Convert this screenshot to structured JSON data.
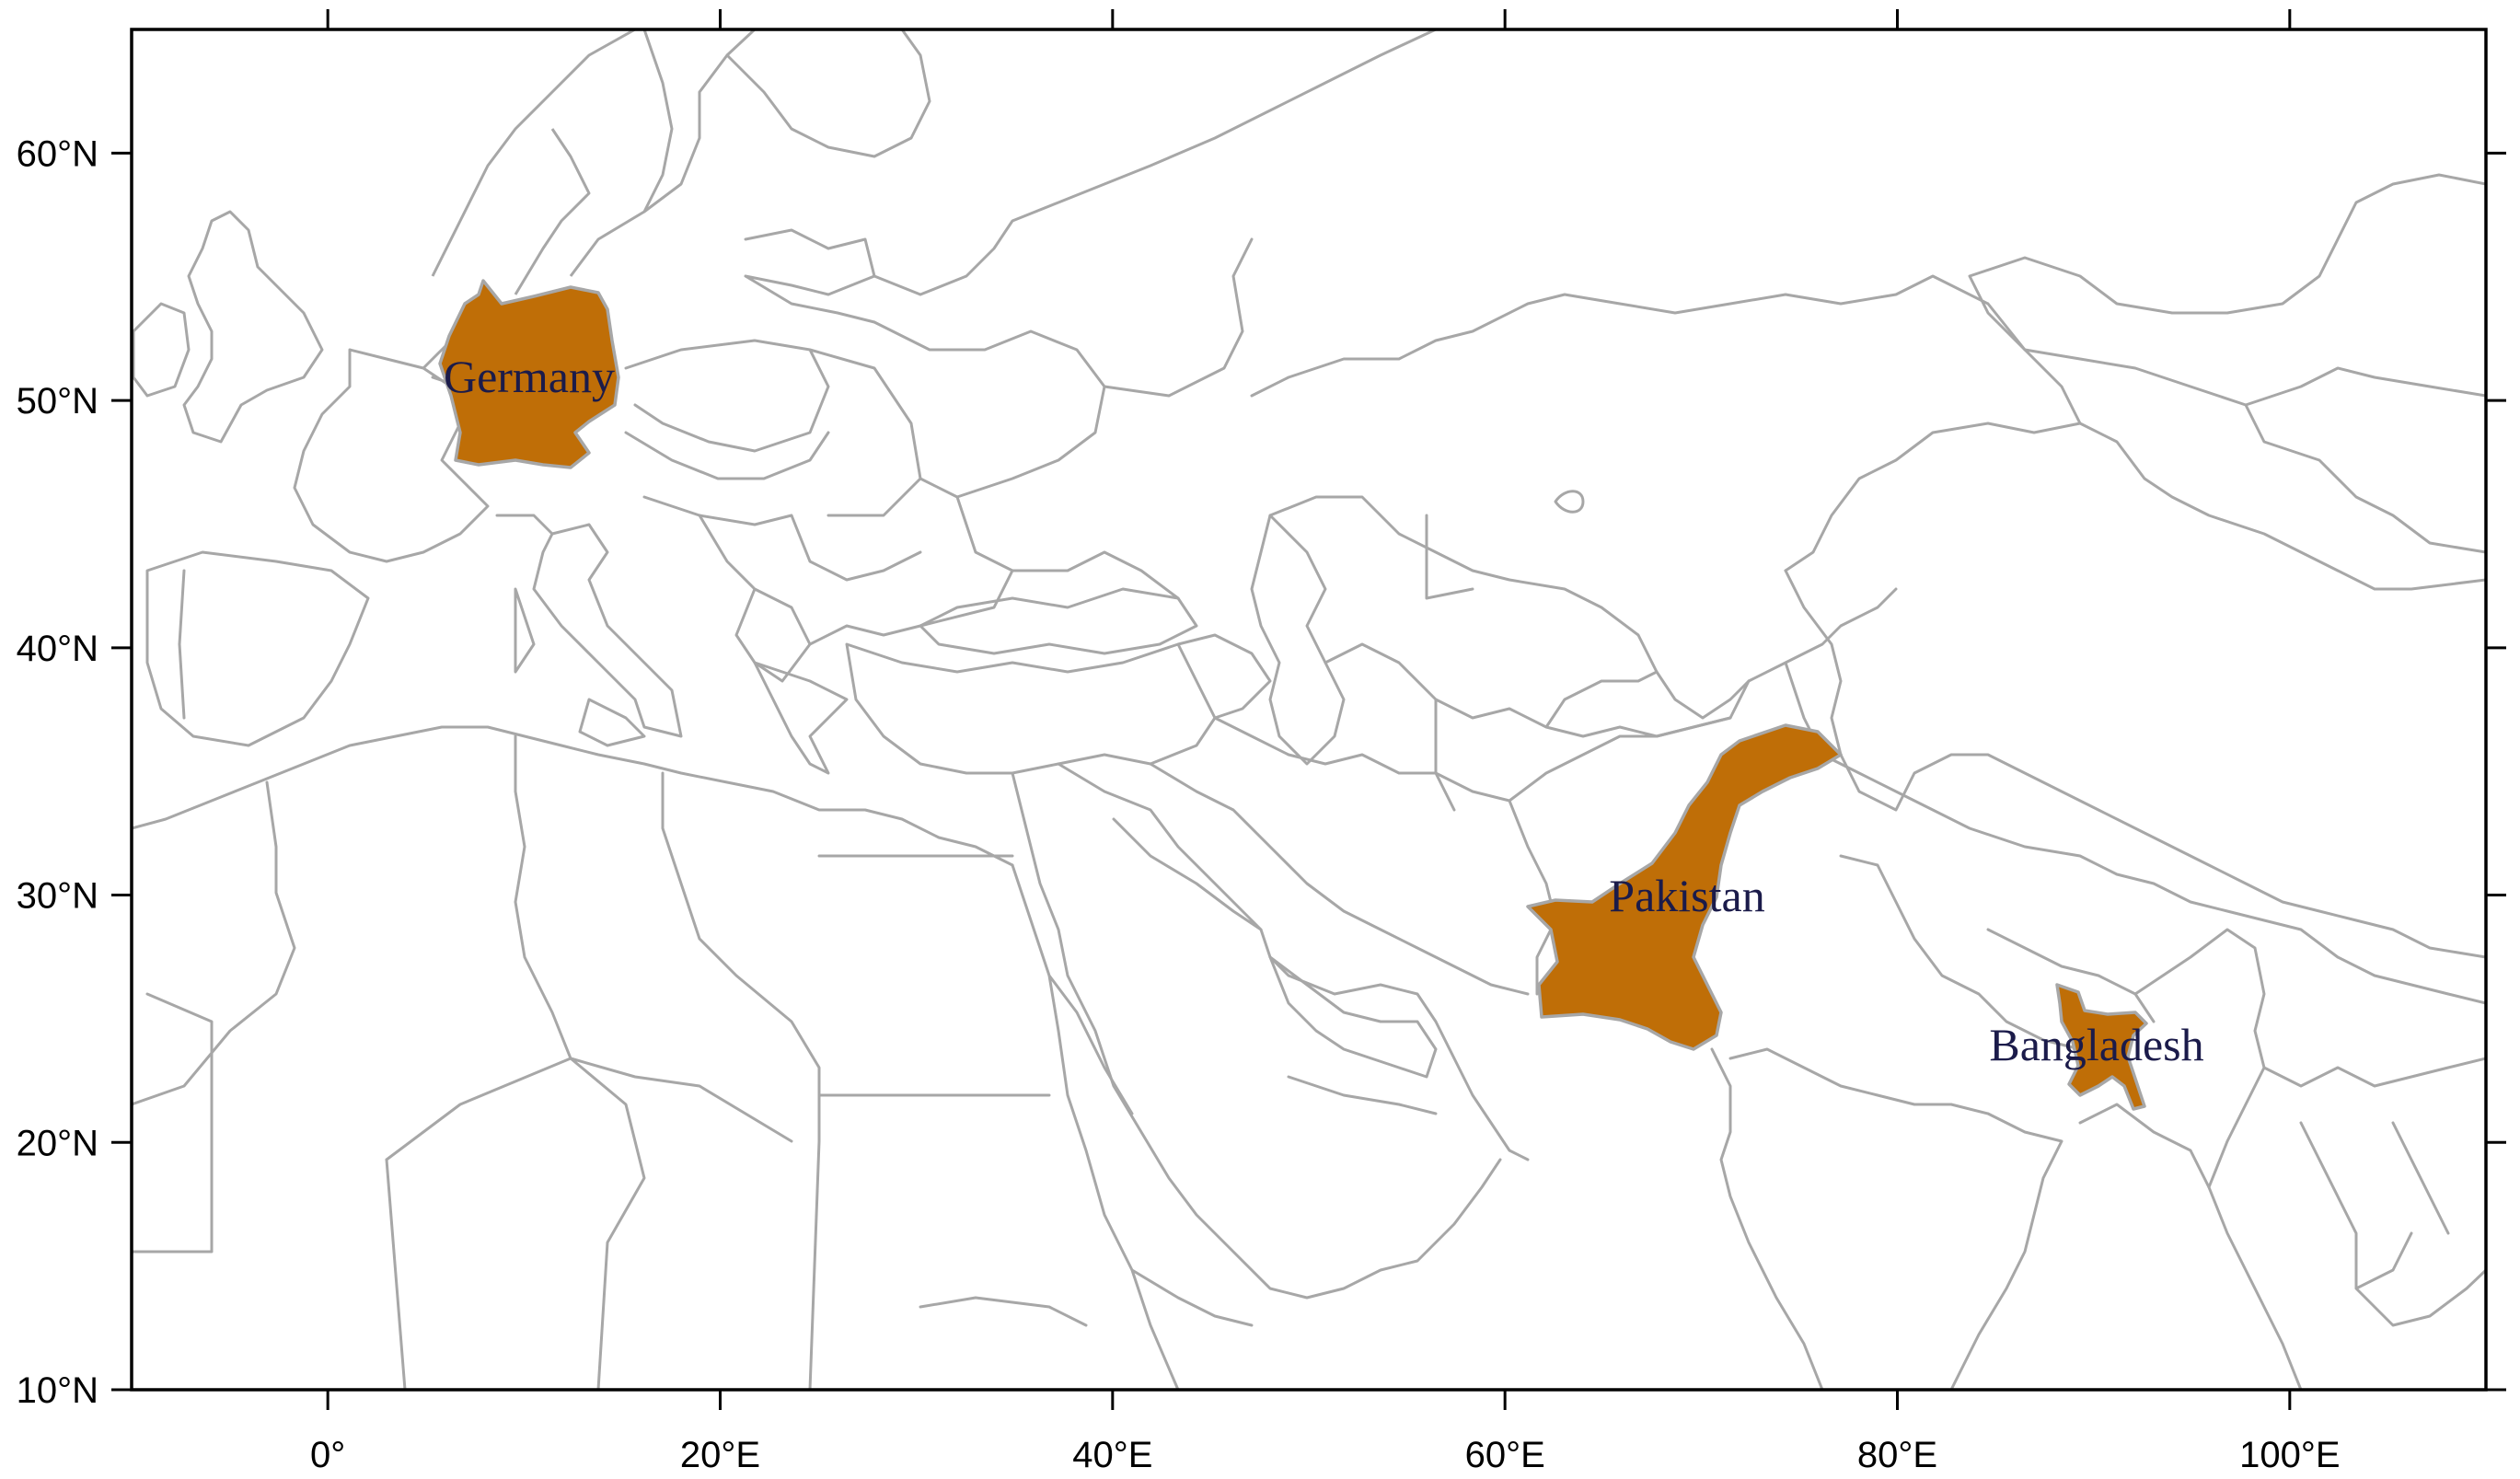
{
  "map": {
    "projection": "plate carree",
    "extent": {
      "lon": [
        -10,
        110
      ],
      "lat": [
        10,
        65
      ]
    },
    "background_color": "#ffffff",
    "border_color": "#a7a7a7",
    "highlight_color": "#bf6e07",
    "label_color": "#1b1b4a",
    "x_ticks": [
      {
        "lon": 0,
        "label": "0°"
      },
      {
        "lon": 20,
        "label": "20°E"
      },
      {
        "lon": 40,
        "label": "40°E"
      },
      {
        "lon": 60,
        "label": "60°E"
      },
      {
        "lon": 80,
        "label": "80°E"
      },
      {
        "lon": 100,
        "label": "100°E"
      }
    ],
    "y_ticks": [
      {
        "lat": 10,
        "label": "10°N"
      },
      {
        "lat": 20,
        "label": "20°N"
      },
      {
        "lat": 30,
        "label": "30°N"
      },
      {
        "lat": 40,
        "label": "40°N"
      },
      {
        "lat": 50,
        "label": "50°N"
      },
      {
        "lat": 60,
        "label": "60°N"
      }
    ],
    "highlighted_countries": [
      {
        "key": "germany",
        "label": "Germany"
      },
      {
        "key": "pakistan",
        "label": "Pakistan"
      },
      {
        "key": "bangladesh",
        "label": "Bangladesh"
      }
    ]
  }
}
